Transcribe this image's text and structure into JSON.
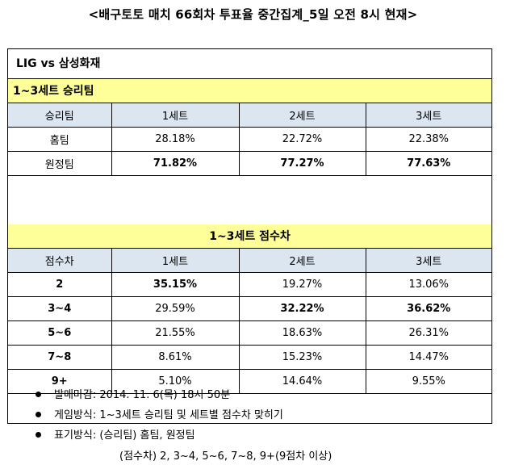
{
  "page": {
    "title": "<배구토토 매치 66회차 투표율 중간집계_5일 오전 8시 현재>"
  },
  "match": {
    "title": "LIG vs 삼성화재"
  },
  "section1": {
    "title": "1~3세트 승리팀",
    "headers": [
      "승리팀",
      "1세트",
      "2세트",
      "3세트"
    ],
    "rows": [
      {
        "label": "홈팀",
        "values": [
          "28.18%",
          "22.72%",
          "22.38%"
        ],
        "bold": [
          false,
          false,
          false
        ]
      },
      {
        "label": "원정팀",
        "values": [
          "71.82%",
          "77.27%",
          "77.63%"
        ],
        "bold": [
          true,
          true,
          true
        ]
      }
    ]
  },
  "section2": {
    "title": "1~3세트 점수차",
    "headers": [
      "점수차",
      "1세트",
      "2세트",
      "3세트"
    ],
    "rows": [
      {
        "label": "2",
        "values": [
          "35.15%",
          "19.27%",
          "13.06%"
        ],
        "bold": [
          true,
          false,
          false
        ]
      },
      {
        "label": "3~4",
        "values": [
          "29.59%",
          "32.22%",
          "36.62%"
        ],
        "bold": [
          false,
          true,
          true
        ]
      },
      {
        "label": "5~6",
        "values": [
          "21.55%",
          "18.63%",
          "26.31%"
        ],
        "bold": [
          false,
          false,
          false
        ]
      },
      {
        "label": "7~8",
        "values": [
          "8.61%",
          "15.23%",
          "14.47%"
        ],
        "bold": [
          false,
          false,
          false
        ]
      },
      {
        "label": "9+",
        "values": [
          "5.10%",
          "14.64%",
          "9.55%"
        ],
        "bold": [
          false,
          false,
          false
        ]
      }
    ]
  },
  "notes": {
    "deadline": "발매마감: 2014. 11. 6(목) 18시 50분",
    "method": "게임방식: 1~3세트 승리팀 및 세트별 점수차 맞히기",
    "notation": "표기방식: (승리팀) 홈팀, 원정팀",
    "notation_cont": "(점수차) 2, 3~4, 5~6, 7~8, 9+(9점차 이상)"
  }
}
